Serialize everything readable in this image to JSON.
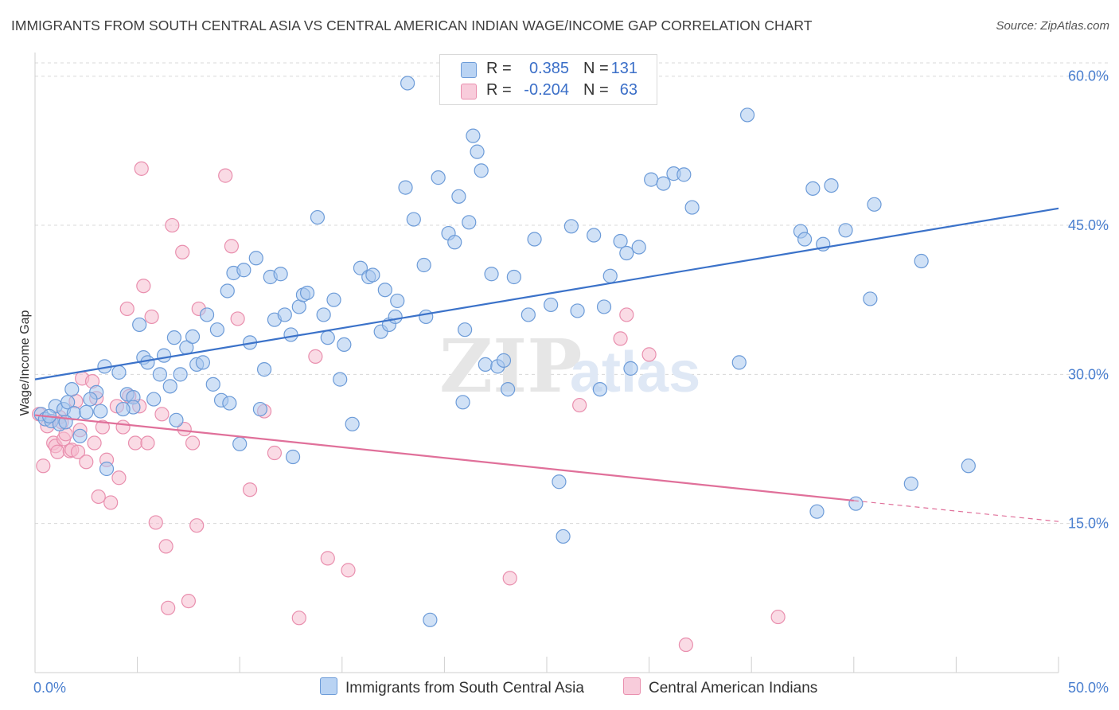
{
  "header": {
    "title": "IMMIGRANTS FROM SOUTH CENTRAL ASIA VS CENTRAL AMERICAN INDIAN WAGE/INCOME GAP CORRELATION CHART",
    "source": "Source: ZipAtlas.com"
  },
  "legend": {
    "series1": {
      "r_label": "R =",
      "r_value": "0.385",
      "n_label": "N =",
      "n_value": "131"
    },
    "series2": {
      "r_label": "R =",
      "r_value": "-0.204",
      "n_label": "N =",
      "n_value": "63"
    }
  },
  "bottom_legend": {
    "series1_name": "Immigrants from South Central Asia",
    "series2_name": "Central American Indians"
  },
  "watermark": {
    "zip": "ZIP",
    "atlas": "atlas"
  },
  "colors": {
    "blue_fill": "#a9c8ef",
    "blue_stroke": "#6c9bd8",
    "blue_line": "#3b72c9",
    "pink_fill": "#f5bdd0",
    "pink_stroke": "#e98fae",
    "pink_line": "#e0709a",
    "grid": "#d8d8d8",
    "tick_text": "#4a7fcf"
  },
  "chart_data": {
    "type": "scatter",
    "title": "IMMIGRANTS FROM SOUTH CENTRAL ASIA VS CENTRAL AMERICAN INDIAN WAGE/INCOME GAP CORRELATION CHART",
    "xlabel": "",
    "ylabel": "Wage/Income Gap",
    "xlim": [
      0,
      50
    ],
    "ylim": [
      0,
      61.5
    ],
    "x_tick_labels": [
      "0.0%",
      "50.0%"
    ],
    "y_ticks": [
      15,
      30,
      45,
      60
    ],
    "y_tick_labels": [
      "15.0%",
      "30.0%",
      "45.0%",
      "60.0%"
    ],
    "grid": "horizontal dashed",
    "legend_position": "top-center",
    "series": [
      {
        "name": "Immigrants from South Central Asia",
        "r": 0.385,
        "n": 131,
        "trend": {
          "x": [
            0,
            50
          ],
          "y": [
            29.5,
            46.7
          ],
          "style": "solid"
        },
        "points": [
          [
            0.3,
            26
          ],
          [
            0.5,
            25.5
          ],
          [
            0.8,
            25.3
          ],
          [
            1,
            26.8
          ],
          [
            1.2,
            25
          ],
          [
            1.4,
            26.5
          ],
          [
            1.6,
            27.2
          ],
          [
            1.8,
            28.5
          ],
          [
            1.9,
            26.1
          ],
          [
            2.2,
            23.8
          ],
          [
            2.5,
            26.2
          ],
          [
            3.2,
            26.3
          ],
          [
            3,
            28.2
          ],
          [
            3.4,
            30.8
          ],
          [
            3.5,
            20.5
          ],
          [
            4.1,
            30.2
          ],
          [
            4.5,
            28
          ],
          [
            4.8,
            27.7
          ],
          [
            4.8,
            26.7
          ],
          [
            5.1,
            35
          ],
          [
            5.3,
            31.7
          ],
          [
            5.5,
            31.2
          ],
          [
            5.8,
            27.5
          ],
          [
            6.1,
            30
          ],
          [
            6.3,
            31.9
          ],
          [
            6.6,
            28.8
          ],
          [
            6.8,
            33.7
          ],
          [
            7.1,
            30
          ],
          [
            7.4,
            32.7
          ],
          [
            7.7,
            33.8
          ],
          [
            7.9,
            31
          ],
          [
            8.2,
            31.2
          ],
          [
            8.4,
            36
          ],
          [
            8.7,
            29
          ],
          [
            8.9,
            34.5
          ],
          [
            9.1,
            27.4
          ],
          [
            9.5,
            27.1
          ],
          [
            9.4,
            38.4
          ],
          [
            9.7,
            40.2
          ],
          [
            10,
            23
          ],
          [
            10.2,
            40.5
          ],
          [
            10.5,
            33.2
          ],
          [
            10.8,
            41.7
          ],
          [
            11,
            26.5
          ],
          [
            11.2,
            30.5
          ],
          [
            11.5,
            39.8
          ],
          [
            11.7,
            35.5
          ],
          [
            12,
            40.1
          ],
          [
            12.2,
            36
          ],
          [
            12.5,
            34
          ],
          [
            12.6,
            21.7
          ],
          [
            12.9,
            36.8
          ],
          [
            13.1,
            38
          ],
          [
            13.3,
            38.2
          ],
          [
            13.8,
            45.8
          ],
          [
            14.1,
            36
          ],
          [
            14.3,
            33.7
          ],
          [
            14.6,
            37.5
          ],
          [
            14.9,
            29.5
          ],
          [
            15.1,
            33
          ],
          [
            15.5,
            25
          ],
          [
            15.9,
            40.7
          ],
          [
            16.3,
            39.8
          ],
          [
            16.5,
            40
          ],
          [
            16.9,
            34.3
          ],
          [
            17.3,
            35
          ],
          [
            17.1,
            38.5
          ],
          [
            17.6,
            35.8
          ],
          [
            17.7,
            37.4
          ],
          [
            18.1,
            48.8
          ],
          [
            18.2,
            59.3
          ],
          [
            18.5,
            45.6
          ],
          [
            19,
            41
          ],
          [
            19.1,
            35.8
          ],
          [
            19.3,
            5.3
          ],
          [
            19.7,
            49.8
          ],
          [
            20.2,
            44.2
          ],
          [
            20.5,
            43.3
          ],
          [
            20.7,
            47.9
          ],
          [
            21,
            34.5
          ],
          [
            21.2,
            45.3
          ],
          [
            21.4,
            54
          ],
          [
            21.6,
            52.4
          ],
          [
            21.8,
            50.5
          ],
          [
            22,
            31
          ],
          [
            22.3,
            40.1
          ],
          [
            22.6,
            30.8
          ],
          [
            22.9,
            31.4
          ],
          [
            23.1,
            28.5
          ],
          [
            23.4,
            39.8
          ],
          [
            24.1,
            36
          ],
          [
            24.4,
            43.6
          ],
          [
            25.2,
            37
          ],
          [
            25.6,
            19.2
          ],
          [
            25.8,
            13.7
          ],
          [
            26.2,
            44.9
          ],
          [
            26.5,
            36.4
          ],
          [
            27.3,
            44
          ],
          [
            27.6,
            28.5
          ],
          [
            27.8,
            36.8
          ],
          [
            28.1,
            39.9
          ],
          [
            28.6,
            43.4
          ],
          [
            28.9,
            42.2
          ],
          [
            29.1,
            30.6
          ],
          [
            30.1,
            49.6
          ],
          [
            30.7,
            49.2
          ],
          [
            31.2,
            50.2
          ],
          [
            31.7,
            50.1
          ],
          [
            32.1,
            46.8
          ],
          [
            34.4,
            31.2
          ],
          [
            34.8,
            56.1
          ],
          [
            37.4,
            44.4
          ],
          [
            37.6,
            43.6
          ],
          [
            38,
            48.7
          ],
          [
            38.2,
            16.2
          ],
          [
            38.5,
            43.1
          ],
          [
            38.9,
            49
          ],
          [
            39.6,
            44.5
          ],
          [
            40.1,
            17
          ],
          [
            40.8,
            37.6
          ],
          [
            41,
            47.1
          ],
          [
            42.8,
            19
          ],
          [
            43.3,
            41.4
          ],
          [
            45.6,
            20.8
          ],
          [
            0.7,
            25.8
          ],
          [
            1.5,
            25.2
          ],
          [
            2.7,
            27.5
          ],
          [
            4.3,
            26.5
          ],
          [
            6.9,
            25.4
          ],
          [
            20.9,
            27.2
          ],
          [
            29.5,
            42.8
          ]
        ]
      },
      {
        "name": "Central American Indians",
        "r": -0.204,
        "n": 63,
        "trend": {
          "x": [
            0,
            40
          ],
          "y": [
            25.9,
            17.3
          ],
          "style": "solid",
          "dashed_extension": {
            "x": [
              40,
              50
            ],
            "y": [
              17.3,
              15.2
            ]
          }
        },
        "points": [
          [
            0.2,
            26
          ],
          [
            0.4,
            20.8
          ],
          [
            0.6,
            24.8
          ],
          [
            0.9,
            23.1
          ],
          [
            1,
            22.8
          ],
          [
            1.1,
            22.2
          ],
          [
            1.2,
            25.7
          ],
          [
            1.3,
            25.2
          ],
          [
            1.4,
            23.5
          ],
          [
            1.5,
            24
          ],
          [
            1.7,
            22.3
          ],
          [
            1.8,
            22.4
          ],
          [
            2,
            27.3
          ],
          [
            2.1,
            22.2
          ],
          [
            2.2,
            24.4
          ],
          [
            2.3,
            29.6
          ],
          [
            2.5,
            21.2
          ],
          [
            2.8,
            29.3
          ],
          [
            2.9,
            23.1
          ],
          [
            3,
            27.6
          ],
          [
            3.1,
            17.7
          ],
          [
            3.3,
            24.7
          ],
          [
            3.5,
            21.4
          ],
          [
            3.7,
            17.1
          ],
          [
            4,
            26.8
          ],
          [
            4.1,
            19.6
          ],
          [
            4.3,
            24.7
          ],
          [
            4.5,
            36.6
          ],
          [
            4.6,
            27.8
          ],
          [
            4.9,
            23.1
          ],
          [
            5.1,
            26.8
          ],
          [
            5.2,
            50.7
          ],
          [
            5.3,
            38.9
          ],
          [
            5.5,
            23.1
          ],
          [
            5.7,
            35.8
          ],
          [
            5.9,
            15.1
          ],
          [
            6.2,
            26
          ],
          [
            6.4,
            12.7
          ],
          [
            6.5,
            6.5
          ],
          [
            6.7,
            45
          ],
          [
            7.2,
            42.3
          ],
          [
            7.3,
            24.5
          ],
          [
            7.5,
            7.2
          ],
          [
            7.7,
            23.1
          ],
          [
            7.9,
            14.8
          ],
          [
            8,
            36.6
          ],
          [
            9.3,
            50
          ],
          [
            9.6,
            42.9
          ],
          [
            9.9,
            35.6
          ],
          [
            10.5,
            18.4
          ],
          [
            11.2,
            26.3
          ],
          [
            11.7,
            22.1
          ],
          [
            12.9,
            5.5
          ],
          [
            13.7,
            31.8
          ],
          [
            14.3,
            11.5
          ],
          [
            15.3,
            10.3
          ],
          [
            23.2,
            9.5
          ],
          [
            26.6,
            26.9
          ],
          [
            28.6,
            33.6
          ],
          [
            28.9,
            36
          ],
          [
            30,
            32
          ],
          [
            31.8,
            2.8
          ],
          [
            36.3,
            5.6
          ]
        ]
      }
    ]
  }
}
